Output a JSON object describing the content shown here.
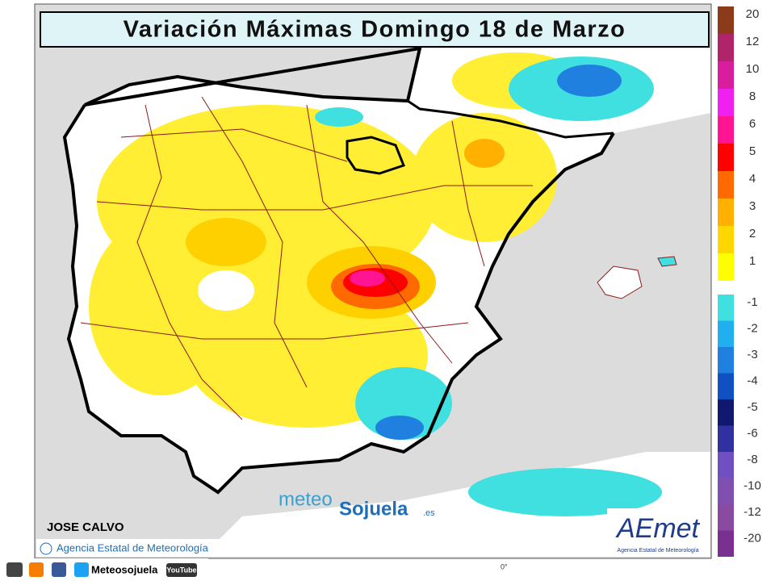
{
  "header": {
    "title": "Variación Máximas Domingo 18 de Marzo"
  },
  "legend": {
    "warm": [
      {
        "label": "20",
        "color": "#8b3a1a"
      },
      {
        "label": "12",
        "color": "#b0246a"
      },
      {
        "label": "10",
        "color": "#d81e9c"
      },
      {
        "label": "8",
        "color": "#f020f0"
      },
      {
        "label": "6",
        "color": "#ff1493"
      },
      {
        "label": "5",
        "color": "#ff0000"
      },
      {
        "label": "4",
        "color": "#ff6a00"
      },
      {
        "label": "3",
        "color": "#ffb000"
      },
      {
        "label": "2",
        "color": "#ffd700"
      },
      {
        "label": "1",
        "color": "#ffff00"
      }
    ],
    "cool": [
      {
        "label": "-1",
        "color": "#40e0e0"
      },
      {
        "label": "-2",
        "color": "#20b0f0"
      },
      {
        "label": "-3",
        "color": "#2080e0"
      },
      {
        "label": "-4",
        "color": "#1050c0"
      },
      {
        "label": "-5",
        "color": "#101870"
      },
      {
        "label": "-6",
        "color": "#3030a0"
      },
      {
        "label": "-8",
        "color": "#7050c0"
      },
      {
        "label": "-10",
        "color": "#8050b0"
      },
      {
        "label": "-12",
        "color": "#8a4aa0"
      },
      {
        "label": "-20",
        "color": "#7a3090"
      }
    ]
  },
  "map": {
    "meridian": "0°"
  },
  "author": "JOSE CALVO",
  "credit": "Agencia Estatal de Meteorología",
  "watermark": {
    "part1": "meteo",
    "part2": "Sojuela",
    "part3": ".es"
  },
  "logo": {
    "name": "AEmet",
    "caption": "Agencia Estatal de Meteorología"
  },
  "footer": {
    "site": "Meteosojuela",
    "video": "YouTube"
  }
}
